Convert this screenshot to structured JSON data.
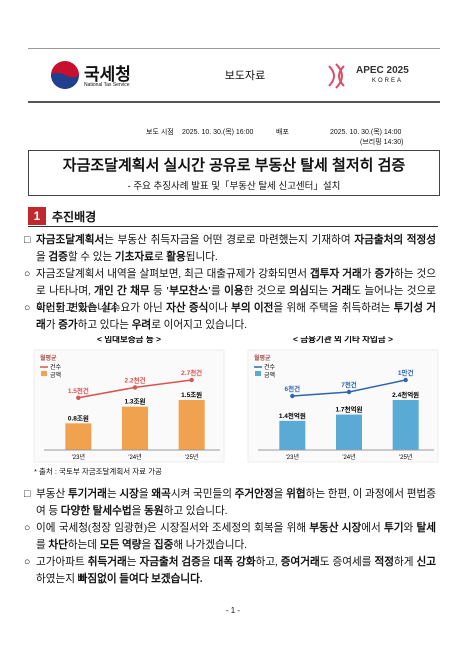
{
  "header": {
    "agency": "국세청",
    "agency_en": "National Tax Service",
    "doc_type": "보도자료",
    "event": "APEC 2025",
    "event_sub": "KOREA"
  },
  "release": {
    "embargo_label": "보도 시점",
    "embargo": "2025. 10. 30.(목) 16:00",
    "distribution_label": "배포",
    "distribution": "2025. 10. 30.(목) 14:00",
    "briefing": "(브리핑 14:30)"
  },
  "title": "자금조달계획서 실시간 공유로 부동산 탈세 철저히 검증",
  "subtitle": "- 주요 추징사례 발표 및「부동산 탈세 신고센터」설치",
  "section": {
    "number": "1",
    "title": "추진배경"
  },
  "paragraphs_before": [
    {
      "marker": "□",
      "runs": [
        {
          "text": "자금조달계획서",
          "bold": true
        },
        "는 부동산 취득자금을 어떤 경로로 마련했는지 기재하여 ",
        {
          "text": "자금출처의 적정성",
          "bold": true
        },
        "을 ",
        {
          "text": "검증",
          "bold": true
        },
        "할 수 있는 ",
        {
          "text": "기초자료",
          "bold": true
        },
        "로 ",
        {
          "text": "활용",
          "bold": true
        },
        "됩니다."
      ]
    },
    {
      "marker": "○",
      "runs": [
        "자금조달계획서 내역을 살펴보면, 최근 대출규제가 강화되면서 ",
        {
          "text": "갭투자 거래",
          "bold": true
        },
        "가 ",
        {
          "text": "증가",
          "bold": true
        },
        "하는 것으로 나타나며, ",
        {
          "text": "개인 간 채무",
          "bold": true
        },
        " 등 ",
        {
          "text": "'부모찬스'",
          "bold": true
        },
        "를 ",
        {
          "text": "이용",
          "bold": true
        },
        "한 것으로 ",
        {
          "text": "의심",
          "bold": true
        },
        "되는 ",
        {
          "text": "거래",
          "bold": true
        },
        "도 늘어나는 것으로 확인되고 있습니다."
      ]
    },
    {
      "marker": "○",
      "runs": [
        "이러한 변화는 실수요가 아닌 ",
        {
          "text": "자산 증식",
          "bold": true
        },
        "이나 ",
        {
          "text": "부의 이전",
          "bold": true
        },
        "을 위해 주택을 취득하려는 ",
        {
          "text": "투기성 거래",
          "bold": true
        },
        "가 ",
        {
          "text": "증가",
          "bold": true
        },
        "하고 있다는 ",
        {
          "text": "우려",
          "bold": true
        },
        "로 이어지고 있습니다."
      ]
    }
  ],
  "chart_data": [
    {
      "type": "bar",
      "title": "< 임대보증금 등 >",
      "legend_title": "월평균",
      "categories": [
        "'23년",
        "'24년",
        "'25년"
      ],
      "series": [
        {
          "name": "금액",
          "color": "#f0a24e",
          "values": [
            0.8,
            1.3,
            1.5
          ],
          "value_labels": [
            "0.8조원",
            "1.3조원",
            "1.5조원"
          ]
        },
        {
          "name": "건수",
          "type": "line",
          "axis": "y2",
          "color": "#d9534f",
          "values": [
            1.5,
            2.2,
            2.7
          ],
          "value_labels": [
            "1.5천건",
            "2.2천건",
            "2.7천건"
          ]
        }
      ]
    },
    {
      "type": "bar",
      "title": "< 금융기관 외 기타 차입금 >",
      "legend_title": "월평균",
      "categories": [
        "'23년",
        "'24년",
        "'25년"
      ],
      "series": [
        {
          "name": "금액",
          "color": "#5aaad6",
          "values": [
            1.4,
            1.7,
            2.4
          ],
          "value_labels": [
            "1.4천억원",
            "1.7천억원",
            "2.4천억원"
          ]
        },
        {
          "name": "건수",
          "type": "line",
          "axis": "y2",
          "color": "#2e64b0",
          "values": [
            6,
            7,
            10
          ],
          "value_labels": [
            "6천건",
            "7천건",
            "1만건"
          ]
        }
      ]
    }
  ],
  "source": "* 출처 : 국토부 자금조달계획서 자료 가공",
  "paragraphs_after": [
    {
      "marker": "□",
      "runs": [
        "부동산 ",
        {
          "text": "투기거래",
          "bold": true
        },
        "는 ",
        {
          "text": "시장",
          "bold": true
        },
        "을 ",
        {
          "text": "왜곡",
          "bold": true
        },
        "시켜 국민들의 ",
        {
          "text": "주거안정",
          "bold": true
        },
        "을 ",
        {
          "text": "위협",
          "bold": true
        },
        "하는 한편, 이 과정에서 편법증여 등 ",
        {
          "text": "다양한 탈세수법",
          "bold": true
        },
        "을 ",
        {
          "text": "동원",
          "bold": true
        },
        "하고 있습니다."
      ]
    },
    {
      "marker": "○",
      "runs": [
        "이에 국세청(청장 임광현)은 시장질서와 조세정의 회복을 위해 ",
        {
          "text": "부동산 시장",
          "bold": true
        },
        "에서 ",
        {
          "text": "투기",
          "bold": true
        },
        "와 ",
        {
          "text": "탈세",
          "bold": true
        },
        "를 ",
        {
          "text": "차단",
          "bold": true
        },
        "하는데 ",
        {
          "text": "모든 역량",
          "bold": true
        },
        "을 ",
        {
          "text": "집중",
          "bold": true
        },
        "해 나가겠습니다."
      ]
    },
    {
      "marker": "○",
      "runs": [
        "고가아파트 ",
        {
          "text": "취득거래",
          "bold": true
        },
        "는 ",
        {
          "text": "자금출처 검증",
          "bold": true
        },
        "을 ",
        {
          "text": "대폭 강화",
          "bold": true
        },
        "하고, ",
        {
          "text": "증여거래",
          "bold": true
        },
        "도 증여세를 ",
        {
          "text": "적정",
          "bold": true
        },
        "하게 ",
        {
          "text": "신고",
          "bold": true
        },
        "하였는지 ",
        {
          "text": "빠짐없이 들여다 보겠습니다.",
          "bold": true
        }
      ]
    }
  ],
  "page_number": "- 1 -"
}
